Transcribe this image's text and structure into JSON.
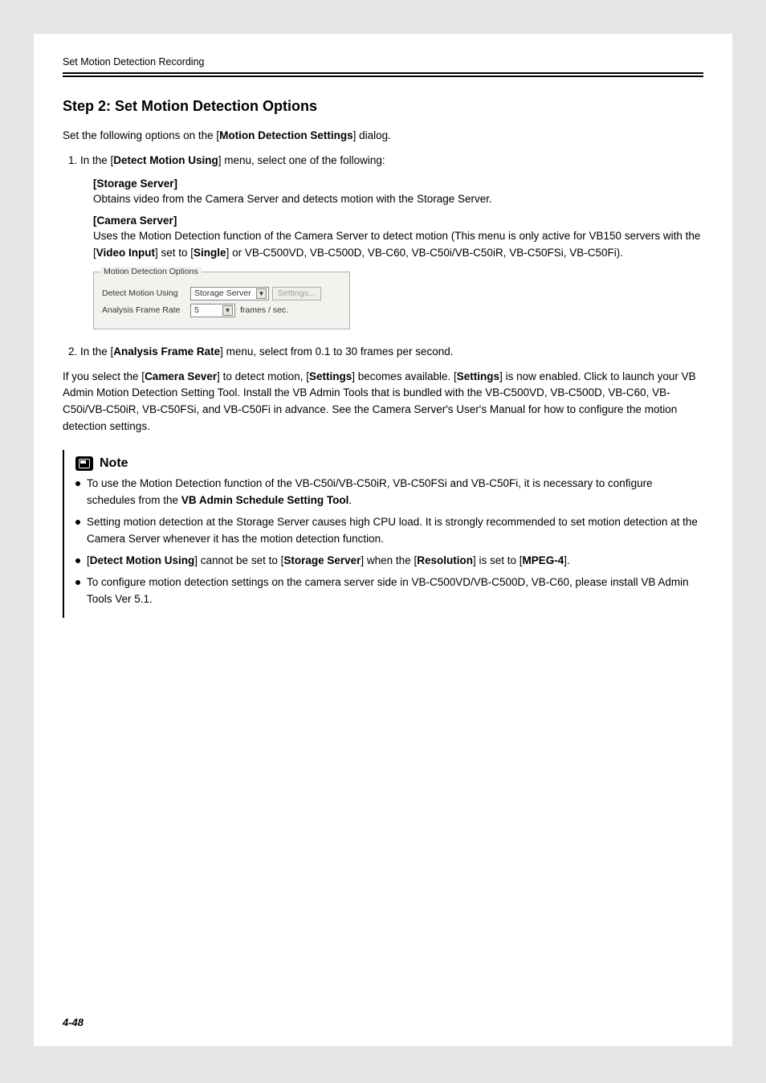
{
  "header": {
    "breadcrumb": "Set Motion Detection Recording"
  },
  "step_title": "Step 2: Set Motion Detection Options",
  "intro": {
    "pre": "Set the following options on the [",
    "em": "Motion Detection Settings",
    "post": "] dialog."
  },
  "ol1": {
    "item1": {
      "pre": "In the [",
      "em": "Detect Motion Using",
      "post": "] menu, select one of the following:"
    }
  },
  "storage": {
    "label": "[Storage Server]",
    "text": "Obtains video from the Camera Server and detects motion with the Storage Server."
  },
  "camera": {
    "label": "[Camera Server]",
    "text_pre": "Uses the Motion Detection function of the Camera Server to detect motion (This menu is only active for VB150 servers with the [",
    "em1": "Video Input",
    "mid": "] set to [",
    "em2": "Single",
    "text_post": "] or VB-C500VD, VB-C500D, VB-C60, VB-C50i/VB-C50iR, VB-C50FSi, VB-C50Fi)."
  },
  "fieldset": {
    "legend": "Motion Detection Options",
    "row1_label": "Detect Motion Using",
    "row1_select": "Storage Server",
    "row1_button": "Settings...",
    "row2_label": "Analysis Frame Rate",
    "row2_select": "5",
    "row2_suffix": "frames / sec."
  },
  "ol2": {
    "item2": {
      "pre": "In the [",
      "em": "Analysis Frame Rate",
      "post": "] menu, select from 0.1 to 30 frames per second."
    }
  },
  "para3": {
    "t1": "If you select the [",
    "em1": "Camera Sever",
    "t2": "] to detect motion, [",
    "em2": "Settings",
    "t3": "] becomes available. [",
    "em3": "Settings",
    "t4": "] is now enabled. Click to launch your VB Admin Motion Detection Setting Tool. Install the VB Admin Tools that is bundled with the VB-C500VD, VB-C500D, VB-C60, VB-C50i/VB-C50iR, VB-C50FSi, and VB-C50Fi in advance. See the Camera Server's User's Manual for how to configure the motion detection settings."
  },
  "note": {
    "title": "Note",
    "items": {
      "0": {
        "t1": "To use the Motion Detection function of the VB-C50i/VB-C50iR, VB-C50FSi and VB-C50Fi, it is necessary to configure schedules from the ",
        "em": "VB Admin Schedule Setting Tool",
        "t2": "."
      },
      "1": {
        "t1": "Setting motion detection at the Storage Server causes high CPU load. It is strongly recommended to set motion detection at the Camera Server whenever it has the motion detection function."
      },
      "2": {
        "t1": "[",
        "em1": "Detect Motion Using",
        "t2": "] cannot be set to [",
        "em2": "Storage Server",
        "t3": "] when the [",
        "em3": "Resolution",
        "t4": "] is set to [",
        "em4": "MPEG-4",
        "t5": "]."
      },
      "3": {
        "t1": "To configure motion detection settings on the camera server side in VB-C500VD/VB-C500D, VB-C60, please install VB Admin Tools Ver 5.1."
      }
    }
  },
  "page_number": "4-48"
}
